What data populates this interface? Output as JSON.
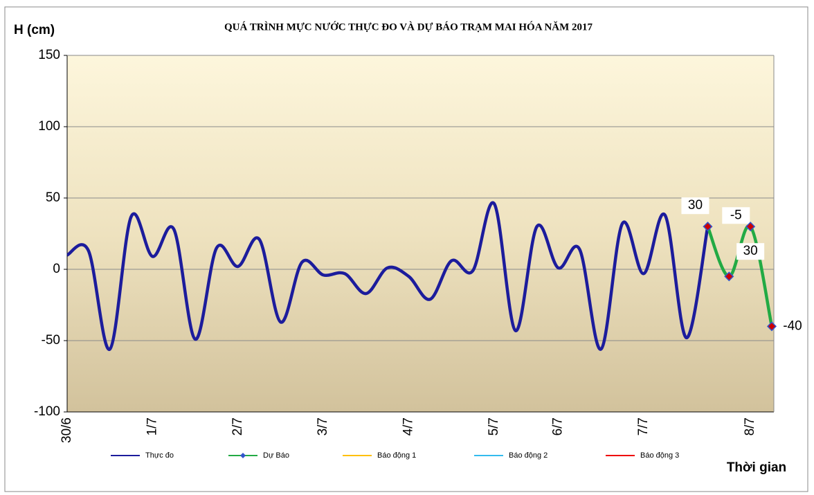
{
  "chart_data": {
    "type": "line",
    "title": "QUÁ TRÌNH MỰC NƯỚC THỰC ĐO VÀ DỰ BÁO TRẠM MAI HÓA  NĂM  2017",
    "y_label": "H (cm)",
    "x_label": "Thời gian",
    "categories": [
      "30/6",
      null,
      null,
      null,
      "1/7",
      null,
      null,
      null,
      "2/7",
      null,
      null,
      null,
      "3/7",
      null,
      null,
      null,
      "4/7",
      null,
      null,
      null,
      "5/7",
      null,
      null,
      "6/7",
      null,
      null,
      null,
      "7/7",
      null,
      null,
      null,
      null,
      "8/7",
      null
    ],
    "series": [
      {
        "name": "Thực đo",
        "color": "#1c1c9c",
        "values": [
          10,
          13,
          -56,
          37,
          9,
          28,
          -49,
          15,
          2,
          21,
          -37,
          5,
          -4,
          -3,
          -17,
          1,
          -5,
          -21,
          6,
          -1,
          46,
          -43,
          30,
          1,
          14,
          -56,
          32,
          -3,
          38,
          -48,
          30,
          null,
          null,
          null
        ]
      },
      {
        "name": "Dự Báo",
        "color": "#22aa44",
        "marker_color": "#cc0000",
        "marker_edge": "#3355cc",
        "data_labels": true,
        "values": [
          null,
          null,
          null,
          null,
          null,
          null,
          null,
          null,
          null,
          null,
          null,
          null,
          null,
          null,
          null,
          null,
          null,
          null,
          null,
          null,
          null,
          null,
          null,
          null,
          null,
          null,
          null,
          null,
          null,
          null,
          30,
          -5,
          30,
          -40
        ]
      },
      {
        "name": "Báo động 1",
        "color": "#ffc000"
      },
      {
        "name": "Báo động 2",
        "color": "#33bbee"
      },
      {
        "name": "Báo động 3",
        "color": "#ee0000"
      }
    ],
    "ylim": [
      -100,
      150
    ],
    "yticks": [
      150,
      100,
      50,
      0,
      -50,
      -100
    ],
    "grid": true,
    "legend": "bottom"
  }
}
